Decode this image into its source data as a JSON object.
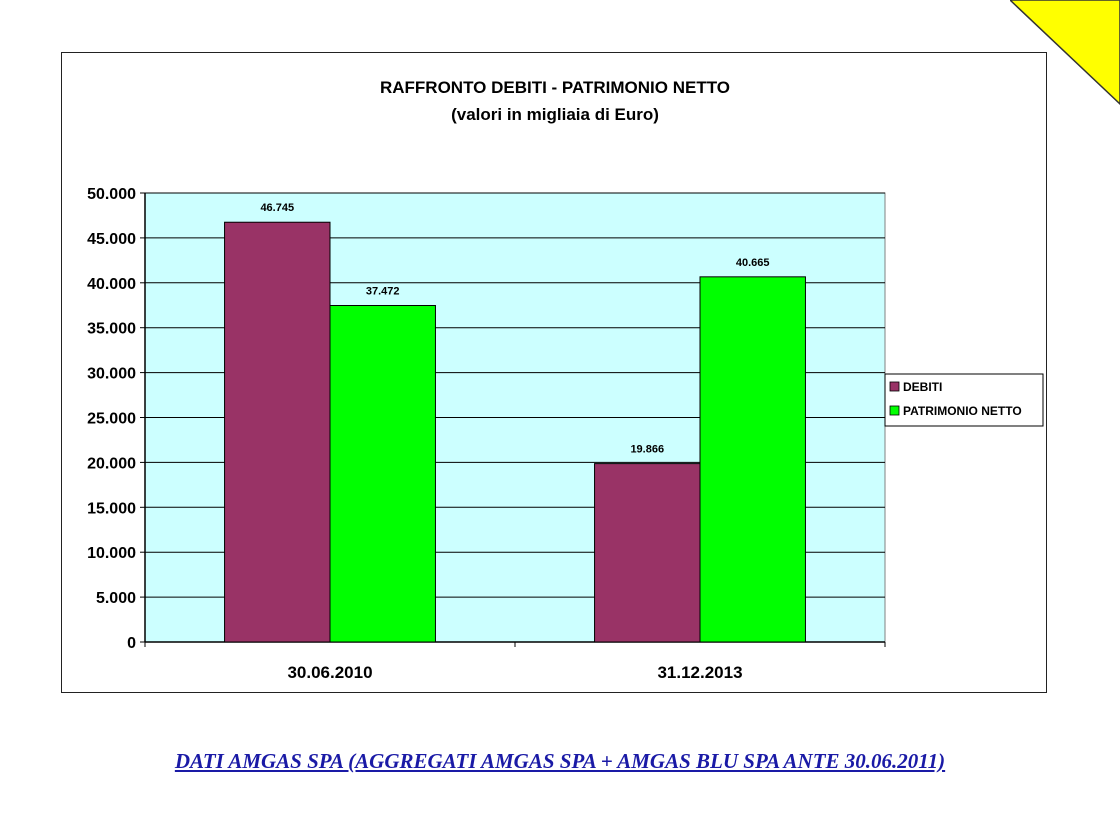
{
  "chart_data": {
    "type": "bar",
    "title": "RAFFRONTO DEBITI - PATRIMONIO NETTO",
    "subtitle": "(valori in migliaia di Euro)",
    "categories": [
      "30.06.2010",
      "31.12.2013"
    ],
    "series": [
      {
        "name": "DEBITI",
        "values": [
          46745,
          19866
        ],
        "labels": [
          "46.745",
          "19.866"
        ],
        "color": "#993366"
      },
      {
        "name": "PATRIMONIO NETTO",
        "values": [
          37472,
          40665
        ],
        "labels": [
          "37.472",
          "40.665"
        ],
        "color": "#00ff00"
      }
    ],
    "ylim": [
      0,
      50000
    ],
    "yticks": [
      0,
      5000,
      10000,
      15000,
      20000,
      25000,
      30000,
      35000,
      40000,
      45000,
      50000
    ],
    "ytick_labels": [
      "0",
      "5.000",
      "10.000",
      "15.000",
      "20.000",
      "25.000",
      "30.000",
      "35.000",
      "40.000",
      "45.000",
      "50.000"
    ],
    "plot_background": "#ccffff",
    "grid": true,
    "legend_position": "right"
  },
  "footer": {
    "text": "DATI AMGAS SPA (AGGREGATI AMGAS SPA + AMGAS BLU SPA ANTE 30.06.2011)"
  },
  "decoration": {
    "corner_color": "#ffff00"
  }
}
